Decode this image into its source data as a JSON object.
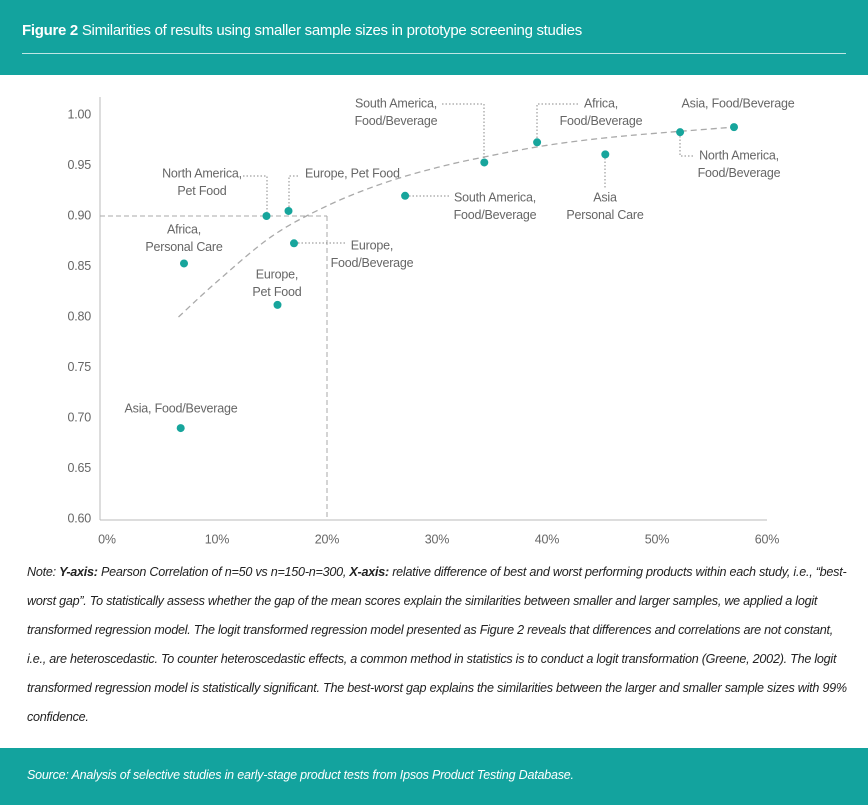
{
  "figure_label": "Figure 2",
  "title": "Similarities of results using smaller sample sizes in prototype screening studies",
  "chart_data": {
    "type": "scatter",
    "color": "#17a59c",
    "x": [
      6.7,
      7.0,
      15.5,
      14.5,
      16.5,
      17.0,
      27.1,
      34.3,
      39.1,
      45.3,
      52.1,
      57.0
    ],
    "values": [
      0.69,
      0.853,
      0.812,
      0.9,
      0.905,
      0.873,
      0.92,
      0.953,
      0.973,
      0.961,
      0.983,
      0.988
    ],
    "labels": [
      [
        "Asia, Food/Beverage"
      ],
      [
        "Africa,",
        "Personal Care"
      ],
      [
        "Europe,",
        "Pet Food"
      ],
      [
        "North America,",
        "Pet Food"
      ],
      [
        "Europe, Pet Food"
      ],
      [
        "Europe,",
        "Food/Beverage"
      ],
      [
        "South America,",
        "Food/Beverage"
      ],
      [
        "South America,",
        "Food/Beverage"
      ],
      [
        "Africa,",
        "Food/Beverage"
      ],
      [
        "Asia",
        "Personal Care"
      ],
      [
        "North America,",
        "Food/Beverage"
      ],
      [
        "Asia, Food/Beverage"
      ]
    ],
    "trend": {
      "x": [
        6.5,
        10,
        15,
        20,
        25,
        30,
        35,
        40,
        45,
        50,
        57
      ],
      "values": [
        0.8,
        0.835,
        0.88,
        0.91,
        0.932,
        0.948,
        0.96,
        0.97,
        0.977,
        0.982,
        0.988
      ]
    },
    "reference": {
      "x": 20,
      "y": 0.9
    },
    "xlim": [
      0,
      60
    ],
    "ylim": [
      0.6,
      1.0
    ],
    "xticks": [
      {
        "value": 0,
        "label": "0%"
      },
      {
        "value": 10,
        "label": "10%"
      },
      {
        "value": 20,
        "label": "20%"
      },
      {
        "value": 30,
        "label": "30%"
      },
      {
        "value": 40,
        "label": "40%"
      },
      {
        "value": 50,
        "label": "50%"
      },
      {
        "value": 60,
        "label": "60%"
      }
    ],
    "yticks": [
      {
        "value": 0.6,
        "label": "0.60"
      },
      0.65,
      {
        "value": 0.7,
        "label": "0.70"
      },
      0.75,
      {
        "value": 0.8,
        "label": "0.80"
      },
      0.85,
      {
        "value": 0.9,
        "label": "0.90"
      },
      0.95,
      {
        "value": 1.0,
        "label": "1.00"
      }
    ],
    "grid": false
  },
  "note": [
    "Note: ",
    "Y-axis:",
    " Pearson Correlation of n=50 vs n=150-n=300, ",
    "X-axis:",
    " relative difference of best and worst performing products within each study, i.e., “best-worst gap”. To statistically assess whether the gap of the mean scores explain the similarities between smaller and larger samples, we applied a logit transformed regression model. The logit transformed regression model presented as Figure 2 reveals that differences and correlations are not constant, i.e., are heteroscedastic. To counter heteroscedastic effects, a common method in statistics is to conduct a logit transformation (Greene, 2002). The logit transformed regression model is statistically significant.  The best-worst gap explains the similarities between the larger and smaller sample sizes with 99% confidence."
  ],
  "source": "Source: Analysis of selective studies in early-stage product tests from Ipsos Product Testing Database."
}
